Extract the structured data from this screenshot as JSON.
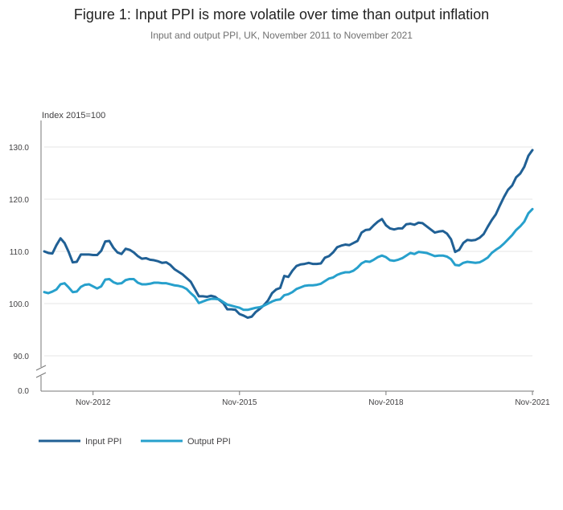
{
  "chart_data": {
    "type": "line",
    "title": "Figure 1: Input PPI is more volatile over time than output inflation",
    "subtitle": "Input and output PPI, UK, November 2011 to November 2021",
    "ylabel": "Index 2015=100",
    "ylim": [
      0,
      130
    ],
    "y_axis_break": true,
    "y_ticks": [
      {
        "value": 130,
        "label": "130.0"
      },
      {
        "value": 120,
        "label": "120.0"
      },
      {
        "value": 110,
        "label": "110.0"
      },
      {
        "value": 100,
        "label": "100.0"
      },
      {
        "value": 90,
        "label": "90.0"
      },
      {
        "value": 0,
        "label": "0.0"
      }
    ],
    "x_ticks": [
      {
        "index": 12,
        "label": "Nov-2012"
      },
      {
        "index": 48,
        "label": "Nov-2015"
      },
      {
        "index": 84,
        "label": "Nov-2018"
      },
      {
        "index": 120,
        "label": "Nov-2021"
      }
    ],
    "start": "Nov-2011",
    "end": "Nov-2021",
    "grid": true,
    "legend_position": "bottom-left",
    "series": [
      {
        "name": "Input PPI",
        "color": "#206095",
        "values": [
          110.0,
          109.7,
          109.6,
          111.2,
          112.5,
          111.6,
          109.9,
          107.9,
          108.0,
          109.4,
          109.4,
          109.4,
          109.3,
          109.3,
          110.1,
          111.9,
          112.0,
          110.7,
          109.8,
          109.5,
          110.5,
          110.3,
          109.8,
          109.1,
          108.6,
          108.7,
          108.4,
          108.3,
          108.1,
          107.8,
          107.9,
          107.4,
          106.6,
          106.1,
          105.6,
          104.9,
          104.2,
          102.8,
          101.4,
          101.4,
          101.3,
          101.5,
          101.3,
          100.7,
          100.1,
          98.9,
          98.9,
          98.8,
          98.0,
          97.7,
          97.3,
          97.5,
          98.4,
          99.0,
          99.7,
          100.6,
          102.0,
          102.7,
          103.0,
          105.3,
          105.1,
          106.3,
          107.2,
          107.5,
          107.6,
          107.8,
          107.6,
          107.6,
          107.7,
          108.8,
          109.1,
          109.8,
          110.8,
          111.1,
          111.3,
          111.2,
          111.6,
          112.0,
          113.6,
          114.1,
          114.2,
          115.0,
          115.7,
          116.2,
          115.0,
          114.4,
          114.2,
          114.4,
          114.4,
          115.2,
          115.3,
          115.1,
          115.5,
          115.4,
          114.8,
          114.2,
          113.6,
          113.8,
          113.9,
          113.4,
          112.3,
          109.9,
          110.3,
          111.6,
          112.2,
          112.1,
          112.2,
          112.6,
          113.3,
          114.7,
          116.0,
          117.1,
          118.8,
          120.4,
          121.8,
          122.6,
          124.2,
          124.9,
          126.2,
          128.3,
          129.4
        ]
      },
      {
        "name": "Output PPI",
        "color": "#27a0cc",
        "values": [
          102.2,
          102.0,
          102.3,
          102.7,
          103.7,
          103.9,
          103.1,
          102.2,
          102.3,
          103.2,
          103.6,
          103.7,
          103.3,
          102.9,
          103.3,
          104.6,
          104.7,
          104.1,
          103.8,
          103.9,
          104.5,
          104.7,
          104.7,
          104.0,
          103.7,
          103.7,
          103.8,
          104.0,
          104.0,
          103.9,
          103.9,
          103.7,
          103.5,
          103.4,
          103.2,
          102.8,
          102.0,
          101.3,
          100.1,
          100.4,
          100.7,
          100.9,
          100.9,
          100.8,
          100.3,
          99.8,
          99.6,
          99.4,
          99.2,
          98.8,
          98.8,
          99.0,
          99.2,
          99.3,
          99.6,
          100.0,
          100.4,
          100.7,
          100.8,
          101.6,
          101.8,
          102.2,
          102.8,
          103.1,
          103.4,
          103.5,
          103.5,
          103.6,
          103.8,
          104.3,
          104.8,
          105.0,
          105.5,
          105.8,
          106.0,
          106.0,
          106.3,
          106.9,
          107.7,
          108.1,
          108.0,
          108.4,
          108.9,
          109.2,
          108.9,
          108.3,
          108.2,
          108.4,
          108.7,
          109.2,
          109.7,
          109.5,
          109.9,
          109.8,
          109.7,
          109.4,
          109.1,
          109.2,
          109.2,
          109.0,
          108.5,
          107.4,
          107.3,
          107.8,
          108.0,
          107.9,
          107.8,
          107.9,
          108.3,
          108.8,
          109.7,
          110.3,
          110.8,
          111.5,
          112.3,
          113.1,
          114.1,
          114.8,
          115.7,
          117.3,
          118.1
        ]
      }
    ]
  }
}
